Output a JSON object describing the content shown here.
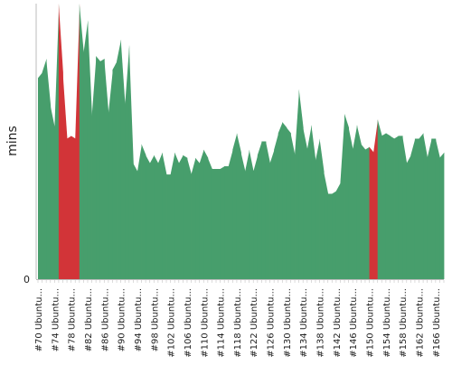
{
  "chart_data": {
    "type": "area",
    "title": "",
    "xlabel": "",
    "ylabel": "mins",
    "ylim": [
      0,
      100
    ],
    "y_ticks": [
      0
    ],
    "grid": false,
    "legend": "none",
    "colors": {
      "pass": "#479e6c",
      "fail": "#d23438",
      "axis": "#bbbbbb",
      "text": "#222222"
    },
    "x_tick_labels": [
      "#70 Ubuntu...",
      "#74 Ubuntu...",
      "#78 Ubuntu...",
      "#82 Ubuntu...",
      "#86 Ubuntu...",
      "#90 Ubuntu...",
      "#94 Ubuntu...",
      "#98 Ubuntu...",
      "#102 Ubuntu...",
      "#106 Ubuntu...",
      "#110 Ubuntu...",
      "#114 Ubuntu...",
      "#118 Ubuntu...",
      "#122 Ubuntu...",
      "#126 Ubuntu...",
      "#130 Ubuntu...",
      "#134 Ubuntu...",
      "#138 Ubuntu...",
      "#142 Ubuntu...",
      "#146 Ubuntu...",
      "#150 Ubuntu...",
      "#154 Ubuntu...",
      "#158 Ubuntu...",
      "#162 Ubuntu...",
      "#166 Ubuntu..."
    ],
    "x_start": 70,
    "x": [
      70,
      71,
      72,
      73,
      74,
      75,
      76,
      77,
      78,
      79,
      80,
      81,
      82,
      83,
      84,
      85,
      86,
      87,
      88,
      89,
      90,
      91,
      92,
      93,
      94,
      95,
      96,
      97,
      98,
      99,
      100,
      101,
      102,
      103,
      104,
      105,
      106,
      107,
      108,
      109,
      110,
      111,
      112,
      113,
      114,
      115,
      116,
      117,
      118,
      119,
      120,
      121,
      122,
      123,
      124,
      125,
      126,
      127,
      128,
      129,
      130,
      131,
      132,
      133,
      134,
      135,
      136,
      137,
      138,
      139,
      140,
      141,
      142,
      143,
      144,
      145,
      146,
      147,
      148,
      149,
      150,
      151,
      152,
      153,
      154,
      155,
      156,
      157,
      158,
      159,
      160,
      161,
      162,
      163,
      164,
      165,
      166,
      167,
      168
    ],
    "values": [
      73,
      75,
      80,
      63,
      55,
      100,
      75,
      51,
      52,
      51,
      100,
      82,
      94,
      59,
      81,
      79,
      80,
      60,
      76,
      79,
      87,
      63,
      85,
      42,
      39,
      49,
      45,
      42,
      45,
      42,
      46,
      38,
      38,
      46,
      42,
      45,
      44,
      38,
      44,
      42,
      47,
      44,
      40,
      40,
      40,
      41,
      41,
      47,
      53,
      46,
      39,
      47,
      39,
      45,
      50,
      50,
      42,
      47,
      53,
      57,
      55,
      53,
      45,
      69,
      55,
      47,
      56,
      43,
      51,
      39,
      31,
      31,
      32,
      35,
      60,
      55,
      47,
      56,
      49,
      47,
      48,
      46,
      58,
      52,
      53,
      52,
      51,
      52,
      52,
      42,
      45,
      51,
      51,
      53,
      44,
      51,
      51,
      44,
      46
    ],
    "status": [
      "pass",
      "pass",
      "pass",
      "pass",
      "pass",
      "fail",
      "fail",
      "fail",
      "fail",
      "fail",
      "pass",
      "pass",
      "pass",
      "pass",
      "pass",
      "pass",
      "pass",
      "pass",
      "pass",
      "pass",
      "pass",
      "pass",
      "pass",
      "pass",
      "pass",
      "pass",
      "pass",
      "pass",
      "pass",
      "pass",
      "pass",
      "pass",
      "pass",
      "pass",
      "pass",
      "pass",
      "pass",
      "pass",
      "pass",
      "pass",
      "pass",
      "pass",
      "pass",
      "pass",
      "pass",
      "pass",
      "pass",
      "pass",
      "pass",
      "pass",
      "pass",
      "pass",
      "pass",
      "pass",
      "pass",
      "pass",
      "pass",
      "pass",
      "pass",
      "pass",
      "pass",
      "pass",
      "pass",
      "pass",
      "pass",
      "pass",
      "pass",
      "pass",
      "pass",
      "pass",
      "pass",
      "pass",
      "pass",
      "pass",
      "pass",
      "pass",
      "pass",
      "pass",
      "pass",
      "pass",
      "fail",
      "fail",
      "pass",
      "pass",
      "pass",
      "pass",
      "pass",
      "pass",
      "pass",
      "pass",
      "pass",
      "pass",
      "pass",
      "pass",
      "pass",
      "pass",
      "pass",
      "pass",
      "pass"
    ]
  }
}
